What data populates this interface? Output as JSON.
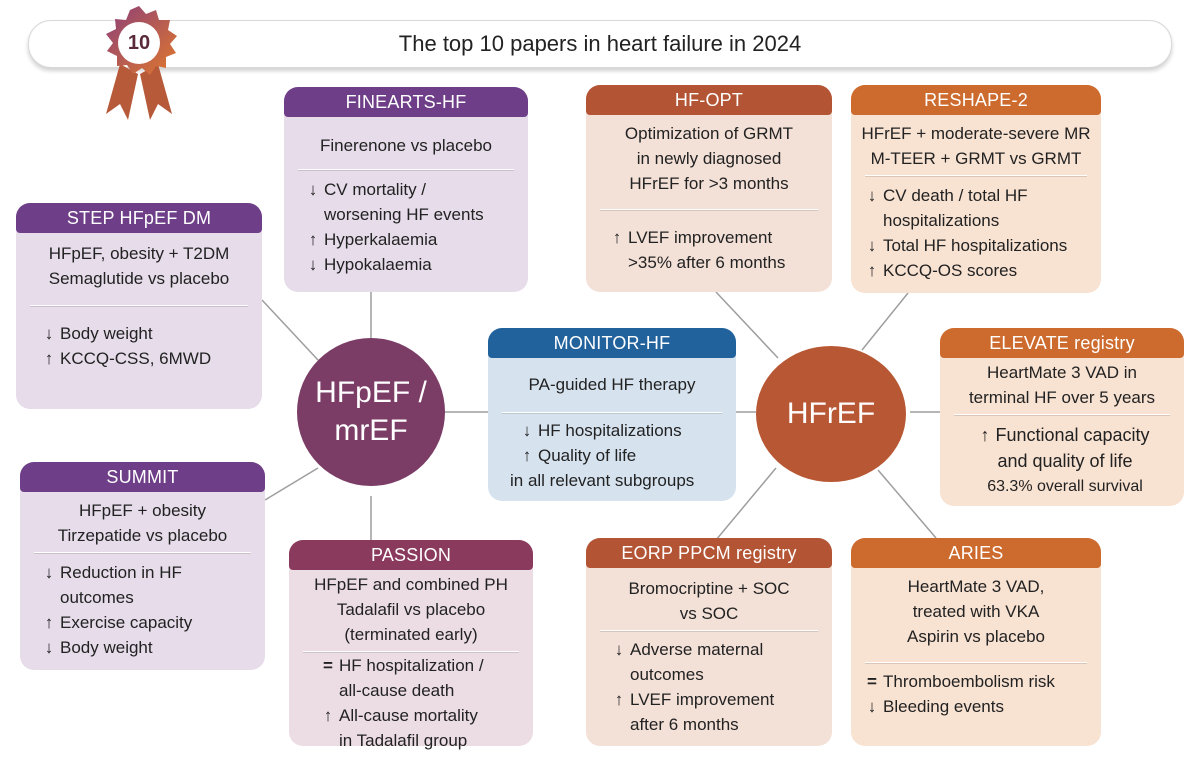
{
  "title": "The top 10 papers in heart failure in 2024",
  "badge": {
    "number": "10"
  },
  "colors": {
    "purple": "#6e3f88",
    "plum": "#8a3b5d",
    "rust": "#b35434",
    "orange": "#cd6a2d",
    "blue": "#21629d"
  },
  "hubs": {
    "left": {
      "line1": "HFpEF /",
      "line2": "mrEF"
    },
    "right": {
      "label": "HFrEF"
    }
  },
  "cards": {
    "step": {
      "header": "STEP HFpEF DM",
      "sub": [
        "HFpEF, obesity + T2DM",
        "Semaglutide vs placebo"
      ],
      "results": [
        {
          "arrow": "↓",
          "text": "Body weight"
        },
        {
          "arrow": "↑",
          "text": "KCCQ-CSS, 6MWD"
        }
      ]
    },
    "finearts": {
      "header": "FINEARTS-HF",
      "sub": [
        "Finerenone vs placebo"
      ],
      "results": [
        {
          "arrow": "↓",
          "text": "CV mortality /"
        },
        {
          "arrow": "",
          "text": "worsening HF events"
        },
        {
          "arrow": "↑",
          "text": "Hyperkalaemia"
        },
        {
          "arrow": "↓",
          "text": "Hypokalaemia"
        }
      ]
    },
    "summit": {
      "header": "SUMMIT",
      "sub": [
        "HFpEF + obesity",
        "Tirzepatide vs placebo"
      ],
      "results": [
        {
          "arrow": "↓",
          "text": "Reduction in HF"
        },
        {
          "arrow": "",
          "text": "outcomes"
        },
        {
          "arrow": "↑",
          "text": "Exercise capacity"
        },
        {
          "arrow": "↓",
          "text": "Body weight"
        }
      ]
    },
    "passion": {
      "header": "PASSION",
      "sub": [
        "HFpEF and combined PH",
        "Tadalafil vs placebo",
        "(terminated early)"
      ],
      "results": [
        {
          "arrow": "=",
          "text": "HF hospitalization /"
        },
        {
          "arrow": "",
          "text": "all-cause death"
        },
        {
          "arrow": "↑",
          "text": "All-cause mortality"
        },
        {
          "arrow": "",
          "text": "in Tadalafil group"
        }
      ]
    },
    "monitor": {
      "header": "MONITOR-HF",
      "sub": [
        "PA-guided HF therapy"
      ],
      "results": [
        {
          "arrow": "↓",
          "text": "HF hospitalizations"
        },
        {
          "arrow": "↑",
          "text": "Quality of life"
        },
        {
          "arrow": "",
          "text": "in all relevant subgroups"
        }
      ]
    },
    "hfopt": {
      "header": "HF-OPT",
      "sub": [
        "Optimization of GRMT",
        "in newly diagnosed",
        "HFrEF for >3 months"
      ],
      "results": [
        {
          "arrow": "↑",
          "text": "LVEF improvement"
        },
        {
          "arrow": "",
          "text": ">35% after 6 months"
        }
      ]
    },
    "reshape": {
      "header": "RESHAPE-2",
      "sub": [
        "HFrEF + moderate-severe MR",
        "M-TEER + GRMT vs GRMT"
      ],
      "results": [
        {
          "arrow": "↓",
          "text": "CV death / total HF"
        },
        {
          "arrow": "",
          "text": "hospitalizations"
        },
        {
          "arrow": "↓",
          "text": "Total HF hospitalizations"
        },
        {
          "arrow": "↑",
          "text": "KCCQ-OS scores"
        }
      ]
    },
    "elevate": {
      "header": "ELEVATE registry",
      "sub": [
        "HeartMate 3 VAD in",
        "terminal HF over 5 years"
      ],
      "results": [
        {
          "arrow": "↑",
          "text": "Functional capacity"
        },
        {
          "arrow": "",
          "text": "and quality of life"
        },
        {
          "arrow": "",
          "text": "63.3% overall survival"
        }
      ]
    },
    "eorp": {
      "header": "EORP PPCM registry",
      "sub": [
        "Bromocriptine + SOC",
        "vs SOC"
      ],
      "results": [
        {
          "arrow": "↓",
          "text": "Adverse maternal"
        },
        {
          "arrow": "",
          "text": "outcomes"
        },
        {
          "arrow": "↑",
          "text": "LVEF improvement"
        },
        {
          "arrow": "",
          "text": "after 6 months"
        }
      ]
    },
    "aries": {
      "header": "ARIES",
      "sub": [
        "HeartMate 3 VAD,",
        "treated with VKA",
        "Aspirin vs placebo"
      ],
      "results": [
        {
          "arrow": "=",
          "text": "Thromboembolism risk"
        },
        {
          "arrow": "↓",
          "text": "Bleeding events"
        }
      ]
    }
  }
}
